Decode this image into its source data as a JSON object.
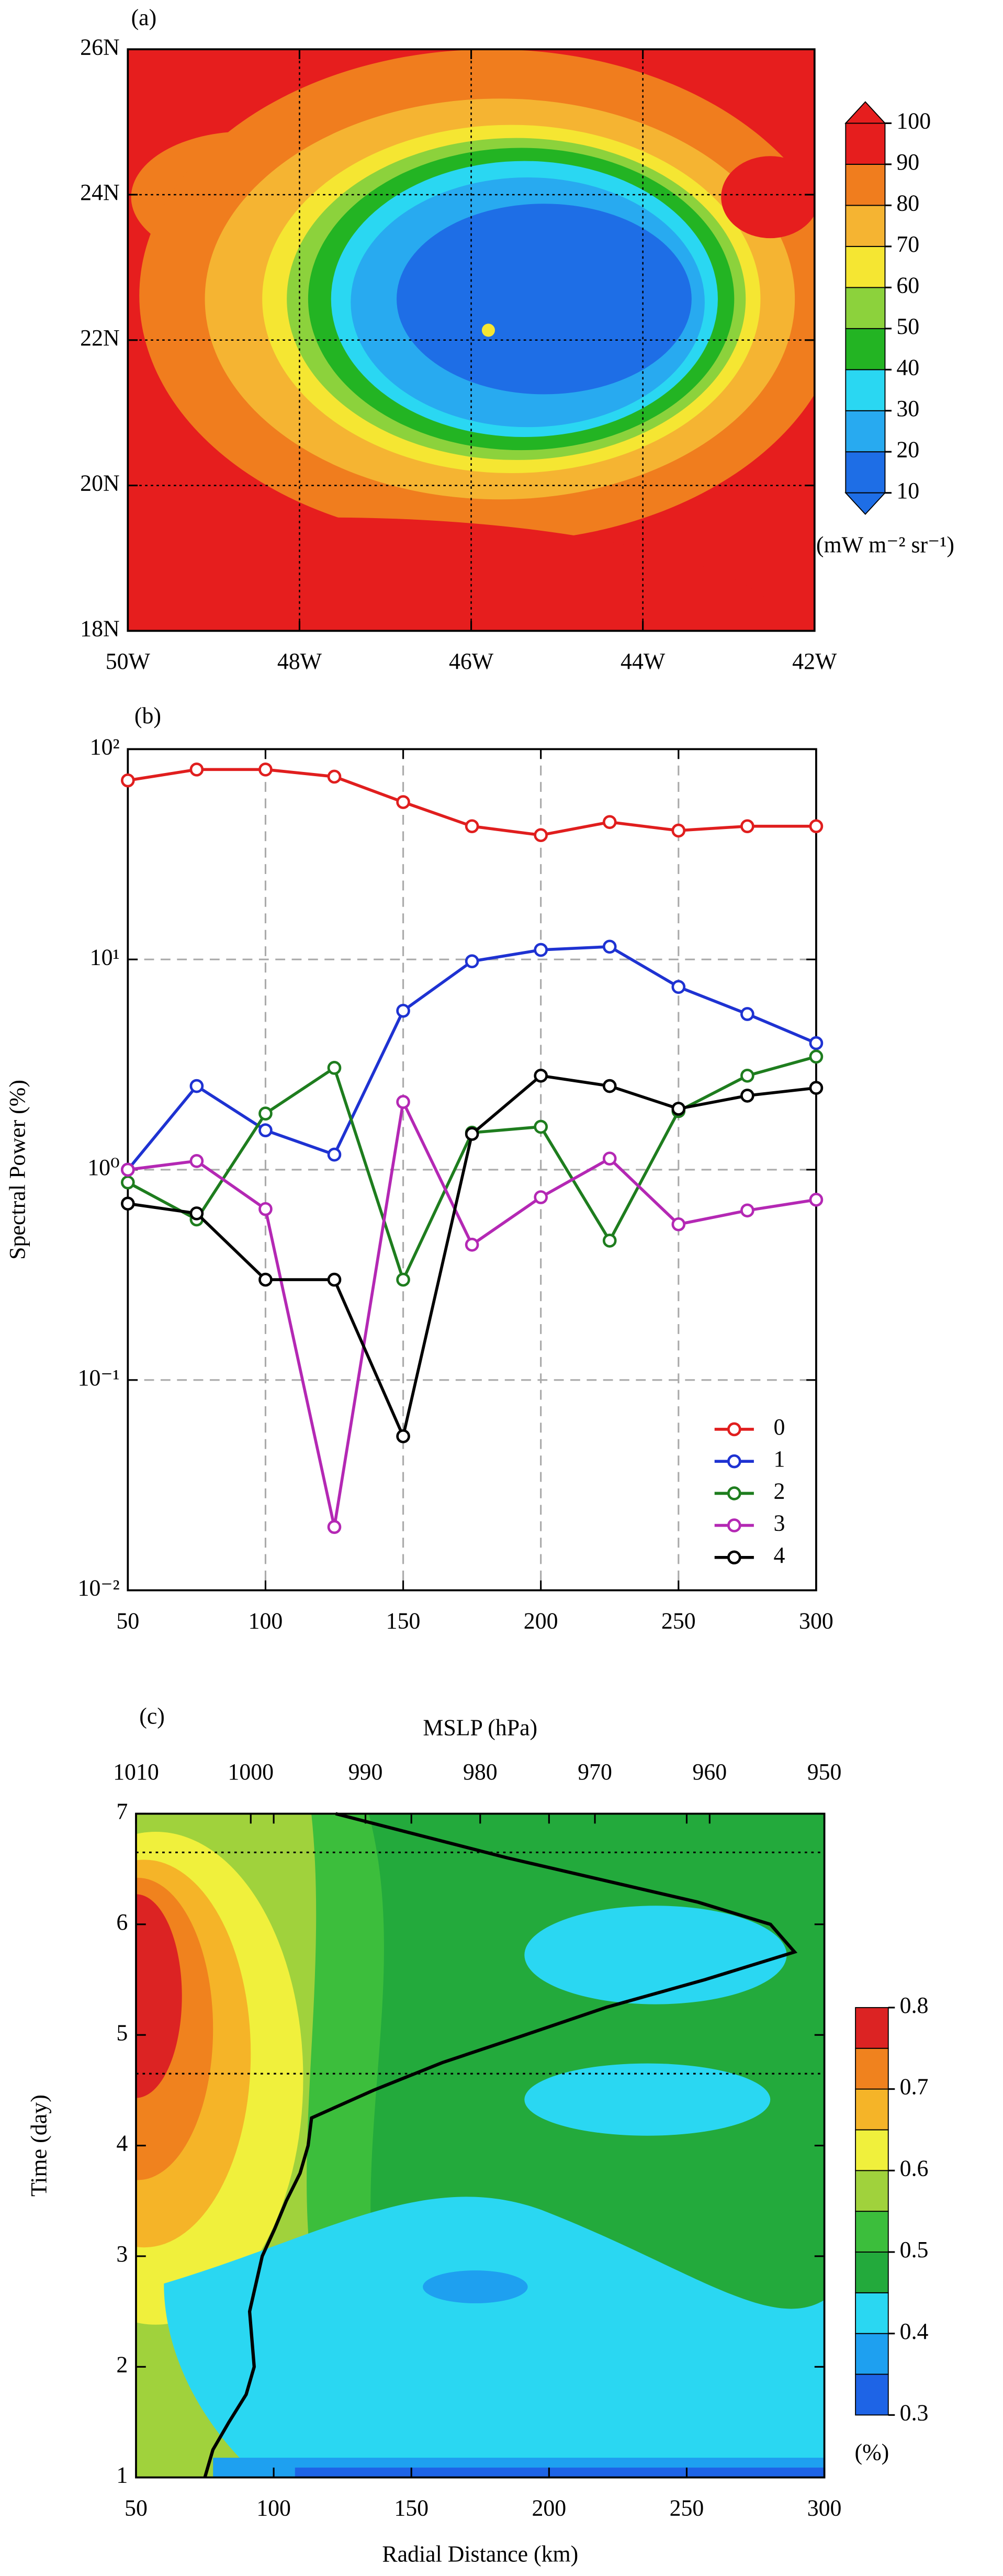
{
  "chart_data": [
    {
      "type": "contour",
      "panel_label": "(a)",
      "xlim": [
        -50,
        -42
      ],
      "xticks": [
        {
          "value": -50,
          "label": "50W"
        },
        {
          "value": -48,
          "label": "48W"
        },
        {
          "value": -46,
          "label": "46W"
        },
        {
          "value": -44,
          "label": "44W"
        },
        {
          "value": -42,
          "label": "42W"
        }
      ],
      "ylim": [
        18,
        26
      ],
      "yticks": [
        {
          "value": 18,
          "label": "18N"
        },
        {
          "value": 20,
          "label": "20N"
        },
        {
          "value": 22,
          "label": "22N"
        },
        {
          "value": 24,
          "label": "24N"
        },
        {
          "value": 26,
          "label": "26N"
        }
      ],
      "grid": true,
      "colorbar": {
        "ticks": [
          10,
          20,
          30,
          40,
          50,
          60,
          70,
          80,
          90,
          100
        ],
        "colors": [
          "#1e6ee6",
          "#28aaf0",
          "#2ad7f2",
          "#23b423",
          "#8cd23c",
          "#f5e632",
          "#f5b432",
          "#f07d1e",
          "#e61e1e"
        ],
        "label": "(mW m⁻² sr⁻¹)",
        "extend": "both"
      }
    },
    {
      "type": "line",
      "panel_label": "(b)",
      "ylabel": "Spectral Power (%)",
      "x": [
        50,
        75,
        100,
        125,
        150,
        175,
        200,
        225,
        250,
        275,
        300
      ],
      "xlim": [
        50,
        300
      ],
      "xticks": [
        50,
        100,
        150,
        200,
        250,
        300
      ],
      "ylim": [
        0.01,
        100
      ],
      "yticks": [
        {
          "value": 0.01,
          "label": "10⁻²"
        },
        {
          "value": 0.1,
          "label": "10⁻¹"
        },
        {
          "value": 1,
          "label": "10⁰"
        },
        {
          "value": 10,
          "label": "10¹"
        },
        {
          "value": 100,
          "label": "10²"
        }
      ],
      "log_y": true,
      "grid": true,
      "legend": "lower right",
      "series": [
        {
          "name": "0",
          "color": "#e01e1e",
          "values": [
            71,
            80,
            80,
            74,
            56,
            43,
            39,
            45,
            41,
            43,
            43
          ]
        },
        {
          "name": "1",
          "color": "#1e32d2",
          "values": [
            1.0,
            2.5,
            1.54,
            1.18,
            5.7,
            9.8,
            11.1,
            11.5,
            7.4,
            5.5,
            4.0
          ]
        },
        {
          "name": "2",
          "color": "#1e7d1e",
          "values": [
            0.87,
            0.58,
            1.85,
            3.05,
            0.3,
            1.5,
            1.6,
            0.46,
            1.9,
            2.8,
            3.45
          ]
        },
        {
          "name": "3",
          "color": "#b428b4",
          "values": [
            1.0,
            1.1,
            0.65,
            0.02,
            2.1,
            0.44,
            0.74,
            1.13,
            0.55,
            0.64,
            0.72
          ]
        },
        {
          "name": "4",
          "color": "#000000",
          "values": [
            0.69,
            0.62,
            0.3,
            0.3,
            0.054,
            1.48,
            2.8,
            2.5,
            1.95,
            2.25,
            2.45
          ]
        }
      ]
    },
    {
      "type": "contour",
      "panel_label": "(c)",
      "xlabel": "Radial Distance (km)",
      "ylabel": "Time (day)",
      "xlim": [
        50,
        300
      ],
      "xticks": [
        50,
        100,
        150,
        200,
        250,
        300
      ],
      "ylim": [
        1,
        7
      ],
      "yticks": [
        1,
        2,
        3,
        4,
        5,
        6,
        7
      ],
      "x2label": "MSLP (hPa)",
      "x2lim": [
        1010,
        950
      ],
      "x2ticks": [
        1010,
        1000,
        990,
        980,
        970,
        960,
        950
      ],
      "hlines": [
        6.65,
        4.65
      ],
      "line": {
        "color": "#000000",
        "y": [
          7.0,
          6.6,
          6.2,
          6.0,
          5.75,
          5.5,
          5.25,
          5.0,
          4.75,
          4.5,
          4.25,
          4.0,
          3.75,
          3.5,
          3.25,
          3.0,
          2.5,
          2.0,
          1.75,
          1.5,
          1.25,
          1.0
        ],
        "x2": [
          992.6,
          977.6,
          961,
          954.7,
          952.6,
          960.4,
          969,
          976.1,
          983.3,
          989.3,
          994.7,
          995,
          995.7,
          996.9,
          997.9,
          999,
          1000.1,
          999.7,
          1000.4,
          1001.9,
          1003.3,
          1004
        ]
      },
      "colorbar": {
        "ticks": [
          0.3,
          0.4,
          0.5,
          0.6,
          0.7,
          0.8
        ],
        "colors": [
          "#1e64e6",
          "#1ea0f0",
          "#2ad7f2",
          "#23aa3c",
          "#3cbe3c",
          "#a0d23c",
          "#f0f03c",
          "#f5b428",
          "#f0821e",
          "#dc2323"
        ],
        "label": "(%)"
      }
    }
  ]
}
